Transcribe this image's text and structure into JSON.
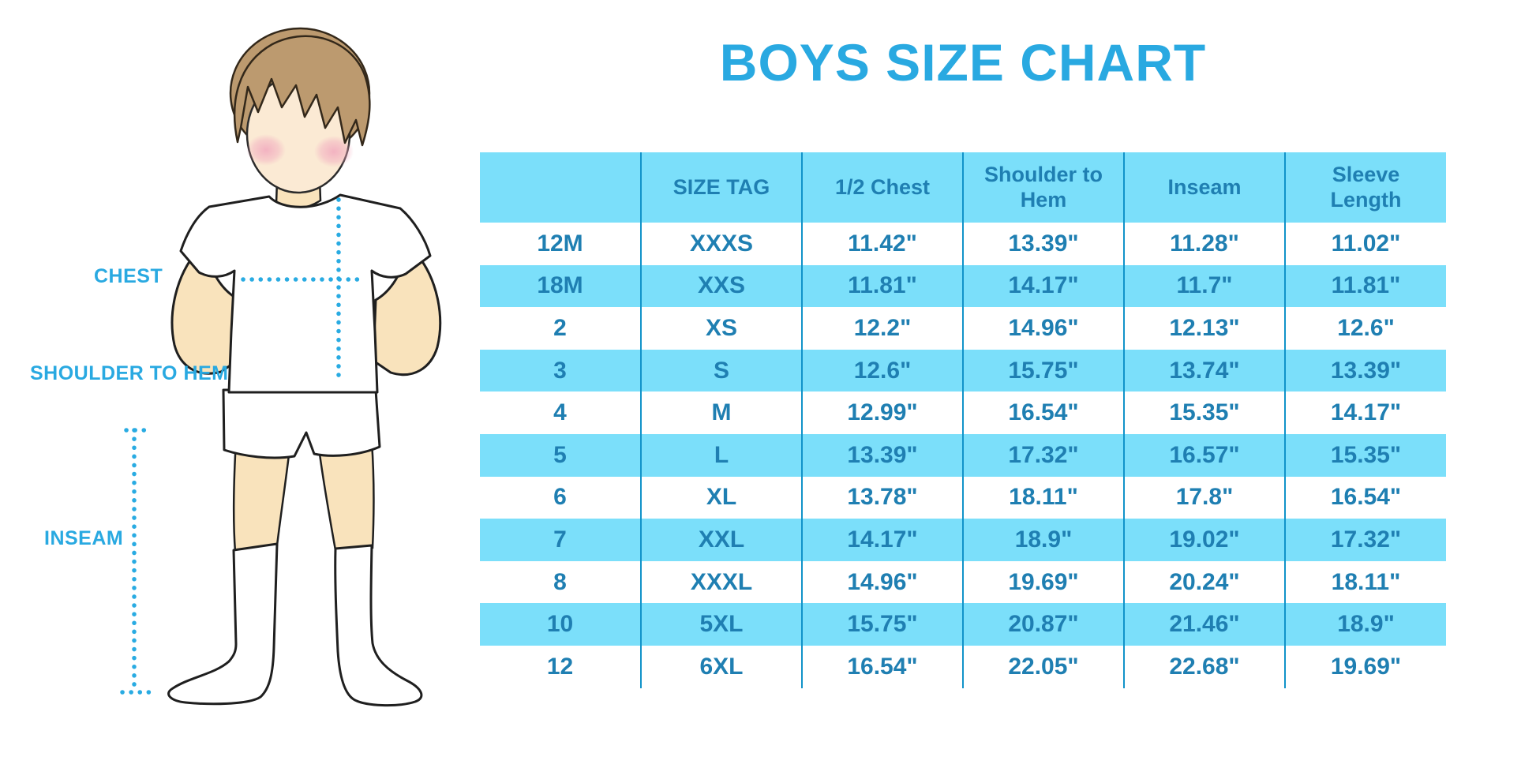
{
  "chart_data": {
    "type": "table",
    "title": "BOYS SIZE CHART",
    "columns": [
      "",
      "SIZE TAG",
      "1/2 Chest",
      "Shoulder to Hem",
      "Inseam",
      "Sleeve Length"
    ],
    "rows": [
      [
        "12M",
        "XXXS",
        "11.42\"",
        "13.39\"",
        "11.28\"",
        "11.02\""
      ],
      [
        "18M",
        "XXS",
        "11.81\"",
        "14.17\"",
        "11.7\"",
        "11.81\""
      ],
      [
        "2",
        "XS",
        "12.2\"",
        "14.96\"",
        "12.13\"",
        "12.6\""
      ],
      [
        "3",
        "S",
        "12.6\"",
        "15.75\"",
        "13.74\"",
        "13.39\""
      ],
      [
        "4",
        "M",
        "12.99\"",
        "16.54\"",
        "15.35\"",
        "14.17\""
      ],
      [
        "5",
        "L",
        "13.39\"",
        "17.32\"",
        "16.57\"",
        "15.35\""
      ],
      [
        "6",
        "XL",
        "13.78\"",
        "18.11\"",
        "17.8\"",
        "16.54\""
      ],
      [
        "7",
        "XXL",
        "14.17\"",
        "18.9\"",
        "19.02\"",
        "17.32\""
      ],
      [
        "8",
        "XXXL",
        "14.96\"",
        "19.69\"",
        "20.24\"",
        "18.11\""
      ],
      [
        "10",
        "5XL",
        "15.75\"",
        "20.87\"",
        "21.46\"",
        "18.9\""
      ],
      [
        "12",
        "6XL",
        "16.54\"",
        "22.05\"",
        "22.68\"",
        "19.69\""
      ]
    ],
    "legend_position": "none",
    "grid": "column-dividers-only",
    "row_striping": "alternating white / light cyan"
  },
  "diagram": {
    "labels": {
      "chest": "CHEST",
      "shoulder_to_hem": "SHOULDER TO HEM",
      "inseam": "INSEAM"
    }
  },
  "colors": {
    "title_blue": "#29A9E1",
    "band_cyan": "#7BDFFA",
    "cell_text_blue": "#1F7FB2",
    "divider_blue": "#1193C9",
    "dotted_line_blue": "#29ABE2",
    "skin": "#F9E3BC",
    "face_skin": "#FBEAD4",
    "hair_brown": "#BC9A6F",
    "blush_pink": "#F1A9BE",
    "outline_dark": "#1F1F1F"
  }
}
